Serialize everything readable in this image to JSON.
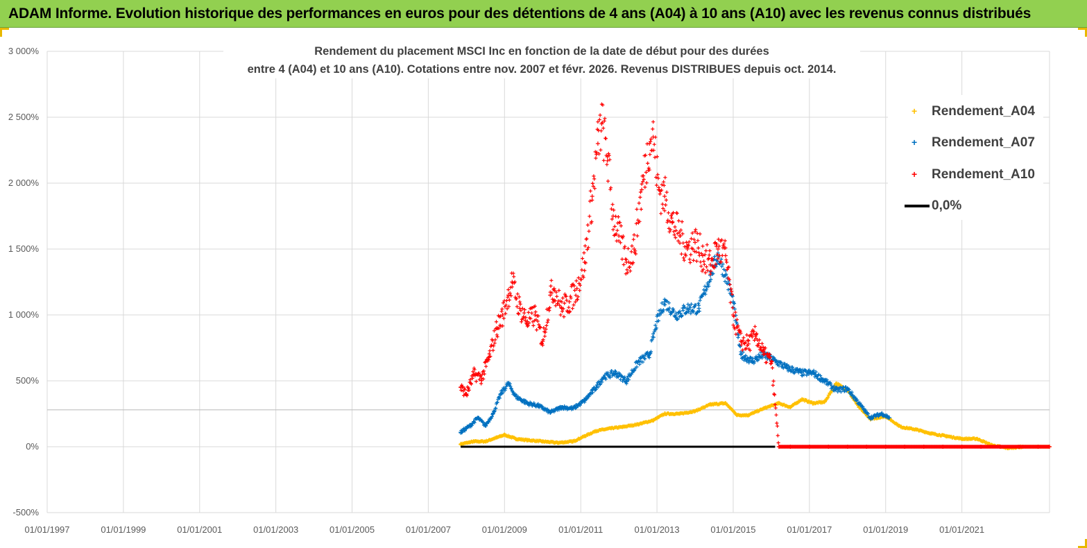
{
  "header": {
    "title": "ADAM Informe. Evolution historique des performances en euros pour des détentions de 4 ans (A04) à 10 ans (A10) avec les revenus connus distribués"
  },
  "chart_data": {
    "type": "scatter",
    "title_line1": "Rendement du placement MSCI Inc en fonction de la date de début pour des durées",
    "title_line2": "entre 4 (A04) et 10 ans (A10).  Cotations entre nov. 2007 et févr. 2026. Revenus DISTRIBUES depuis oct. 2014.",
    "xlabel": "",
    "ylabel": "",
    "xlim": [
      1997.0,
      2023.3
    ],
    "ylim": [
      -500,
      3000
    ],
    "y_ticks": [
      3000,
      2500,
      2000,
      1500,
      1000,
      500,
      0,
      -500
    ],
    "y_tick_labels": [
      "3 000%",
      "2 500%",
      "2 000%",
      "1 500%",
      "1 000%",
      "500%",
      "0%",
      "-500%"
    ],
    "x_ticks": [
      1997,
      1999,
      2001,
      2003,
      2005,
      2007,
      2009,
      2011,
      2013,
      2015,
      2017,
      2019,
      2021
    ],
    "x_tick_labels": [
      "01/01/1997",
      "01/01/1999",
      "01/01/2001",
      "01/01/2003",
      "01/01/2005",
      "01/01/2007",
      "01/01/2009",
      "01/01/2011",
      "01/01/2013",
      "01/01/2015",
      "01/01/2017",
      "01/01/2019",
      "01/01/2021"
    ],
    "extra_gridline_y": 280,
    "series": [
      {
        "name": "Rendement_A04",
        "color": "#ffc000",
        "marker": "+",
        "x": [
          2007.85,
          2008.2,
          2008.5,
          2008.8,
          2009.0,
          2009.3,
          2009.6,
          2010.0,
          2010.4,
          2010.8,
          2011.1,
          2011.4,
          2011.8,
          2012.1,
          2012.5,
          2012.9,
          2013.2,
          2013.6,
          2014.0,
          2014.4,
          2014.8,
          2015.1,
          2015.4,
          2015.8,
          2016.2,
          2016.5,
          2016.8,
          2017.1,
          2017.4,
          2017.7,
          2018.0,
          2018.3,
          2018.6,
          2019.0,
          2019.4,
          2019.8,
          2020.2,
          2020.6,
          2021.0,
          2021.4,
          2021.8,
          2022.2,
          2022.6,
          2023.0,
          2023.3
        ],
        "y": [
          20,
          40,
          40,
          70,
          90,
          60,
          50,
          40,
          30,
          40,
          80,
          120,
          140,
          150,
          170,
          200,
          250,
          250,
          270,
          320,
          330,
          240,
          240,
          290,
          330,
          300,
          360,
          330,
          340,
          480,
          430,
          300,
          210,
          230,
          150,
          130,
          100,
          80,
          60,
          60,
          10,
          -10,
          0,
          0,
          0
        ]
      },
      {
        "name": "Rendement_A07",
        "color": "#0070c0",
        "marker": "+",
        "x": [
          2007.85,
          2008.1,
          2008.3,
          2008.5,
          2008.7,
          2008.9,
          2009.1,
          2009.3,
          2009.6,
          2009.9,
          2010.2,
          2010.5,
          2010.8,
          2011.1,
          2011.4,
          2011.6,
          2011.9,
          2012.2,
          2012.5,
          2012.8,
          2013.0,
          2013.2,
          2013.5,
          2013.8,
          2014.1,
          2014.4,
          2014.6,
          2014.8,
          2015.0,
          2015.2,
          2015.5,
          2015.8,
          2016.1,
          2016.4,
          2016.8,
          2017.1,
          2017.4,
          2017.7,
          2018.0,
          2018.3,
          2018.6,
          2018.9,
          2019.1
        ],
        "y": [
          110,
          160,
          220,
          160,
          250,
          400,
          480,
          380,
          330,
          310,
          260,
          300,
          290,
          350,
          450,
          530,
          560,
          500,
          640,
          700,
          950,
          1100,
          1000,
          1050,
          1050,
          1300,
          1450,
          1300,
          1100,
          700,
          650,
          700,
          650,
          600,
          560,
          560,
          500,
          430,
          440,
          330,
          220,
          250,
          220
        ]
      },
      {
        "name": "Rendement_A10",
        "color": "#ff0000",
        "marker": "+",
        "x": [
          2007.85,
          2008.0,
          2008.2,
          2008.4,
          2008.6,
          2008.8,
          2008.95,
          2009.1,
          2009.2,
          2009.4,
          2009.6,
          2009.8,
          2010.0,
          2010.2,
          2010.3,
          2010.5,
          2010.7,
          2010.9,
          2011.1,
          2011.3,
          2011.45,
          2011.55,
          2011.7,
          2011.85,
          2012.0,
          2012.2,
          2012.4,
          2012.6,
          2012.8,
          2012.9,
          2013.05,
          2013.2,
          2013.4,
          2013.6,
          2013.8,
          2014.0,
          2014.2,
          2014.4,
          2014.6,
          2014.8,
          2015.0,
          2015.2,
          2015.4,
          2015.6,
          2015.8,
          2016.0,
          2016.2,
          2016.5,
          2017.0,
          2017.5,
          2018.0,
          2018.5,
          2019.0,
          2019.5,
          2020.0,
          2020.5,
          2021.0,
          2021.5,
          2022.0,
          2022.5,
          2023.0,
          2023.3
        ],
        "y": [
          450,
          400,
          550,
          520,
          680,
          900,
          1000,
          1150,
          1250,
          1050,
          950,
          1000,
          800,
          1150,
          1200,
          1050,
          1100,
          1200,
          1400,
          1900,
          2300,
          2450,
          2200,
          1750,
          1600,
          1400,
          1500,
          1950,
          2300,
          2350,
          1950,
          1900,
          1700,
          1600,
          1500,
          1550,
          1450,
          1380,
          1500,
          1450,
          1000,
          800,
          780,
          850,
          700,
          650,
          0,
          0,
          0,
          0,
          0,
          0,
          0,
          0,
          0,
          0,
          0,
          0,
          0,
          0,
          0,
          0
        ]
      },
      {
        "name": "0,0%",
        "color": "#000000",
        "marker": "line",
        "x": [
          2007.85,
          2016.1
        ],
        "y": [
          0,
          0
        ]
      }
    ],
    "legend_position": "top-right"
  }
}
